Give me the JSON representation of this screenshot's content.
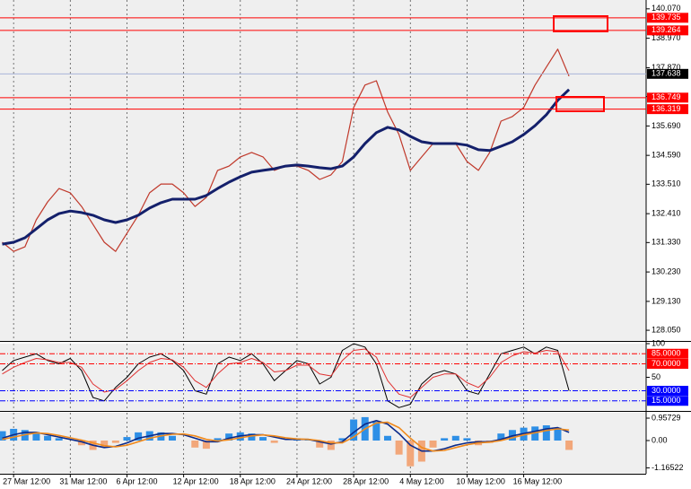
{
  "chart_data": [
    {
      "type": "line",
      "x": [
        -2,
        0,
        2,
        4,
        6,
        8,
        10,
        12,
        14,
        16,
        18,
        20,
        22,
        24,
        26,
        28,
        30,
        32,
        34,
        36,
        38,
        40,
        42,
        44,
        46,
        48,
        50,
        52,
        54,
        56,
        58,
        60,
        62,
        64,
        66,
        68,
        70,
        72,
        74,
        76,
        78,
        80,
        82,
        84,
        86,
        88,
        90,
        92,
        94,
        96,
        98
      ],
      "xlim": [
        -2.4,
        111.6
      ],
      "xticks": [
        {
          "value": 0,
          "label": "27 Mar 12:00"
        },
        {
          "value": 10,
          "label": "31 Mar 12:00"
        },
        {
          "value": 20,
          "label": "6 Apr 12:00"
        },
        {
          "value": 30,
          "label": "12 Apr 12:00"
        },
        {
          "value": 40,
          "label": "18 Apr 12:00"
        },
        {
          "value": 50,
          "label": "24 Apr 12:00"
        },
        {
          "value": 60,
          "label": "28 Apr 12:00"
        },
        {
          "value": 70,
          "label": "4 May 12:00"
        },
        {
          "value": 80,
          "label": "10 May 12:00"
        },
        {
          "value": 90,
          "label": "16 May 12:00"
        }
      ],
      "xgrid": true,
      "ylim": [
        127.65,
        140.4
      ],
      "yticks": [
        {
          "value": 140.07,
          "label": "140.070"
        },
        {
          "value": 138.97,
          "label": "138.970"
        },
        {
          "value": 137.87,
          "label": "137.870"
        },
        {
          "value": 136.79,
          "label": "136.790"
        },
        {
          "value": 135.69,
          "label": "135.690"
        },
        {
          "value": 134.59,
          "label": "134.590"
        },
        {
          "value": 133.51,
          "label": "133.510"
        },
        {
          "value": 132.41,
          "label": "132.410"
        },
        {
          "value": 131.33,
          "label": "131.330"
        },
        {
          "value": 130.23,
          "label": "130.230"
        },
        {
          "value": 129.13,
          "label": "129.130"
        },
        {
          "value": 128.05,
          "label": "128.050"
        }
      ],
      "series": [
        {
          "color": "#c0392b",
          "width": 1.2,
          "values": [
            131.34,
            131.0,
            131.17,
            132.18,
            132.85,
            133.35,
            133.19,
            132.68,
            132.01,
            131.34,
            131.0,
            131.68,
            132.35,
            133.19,
            133.52,
            133.52,
            133.19,
            132.68,
            133.02,
            134.03,
            134.19,
            134.53,
            134.7,
            134.53,
            134.03,
            134.19,
            134.19,
            134.03,
            133.69,
            133.86,
            134.36,
            136.38,
            137.22,
            137.38,
            136.21,
            135.37,
            134.03,
            134.53,
            135.03,
            135.03,
            135.03,
            134.36,
            134.03,
            134.7,
            135.87,
            136.04,
            136.38,
            137.22,
            137.89,
            138.56,
            137.55
          ]
        },
        {
          "color": "#14206b",
          "width": 3,
          "values": [
            131.27,
            131.34,
            131.51,
            131.84,
            132.18,
            132.41,
            132.51,
            132.45,
            132.35,
            132.18,
            132.08,
            132.18,
            132.35,
            132.62,
            132.82,
            132.95,
            132.95,
            132.95,
            133.09,
            133.35,
            133.59,
            133.79,
            133.96,
            134.03,
            134.09,
            134.19,
            134.23,
            134.19,
            134.13,
            134.09,
            134.19,
            134.53,
            135.03,
            135.44,
            135.64,
            135.54,
            135.3,
            135.1,
            135.03,
            135.03,
            135.03,
            134.97,
            134.8,
            134.77,
            134.93,
            135.1,
            135.37,
            135.7,
            136.11,
            136.65,
            137.05
          ]
        }
      ],
      "levels": [
        {
          "value": 139.735,
          "color": "#ff0000"
        },
        {
          "value": 139.264,
          "color": "#ff0000"
        },
        {
          "value": 137.638,
          "color": "#000000",
          "line": "#aab4d8"
        },
        {
          "value": 136.749,
          "color": "#ff0000"
        },
        {
          "value": 136.319,
          "color": "#ff0000"
        }
      ]
    },
    {
      "type": "line",
      "ylim": [
        0,
        100
      ],
      "yticks": [
        100,
        50
      ],
      "series": [
        {
          "color": "#000000",
          "width": 1,
          "values": [
            60,
            75,
            80,
            85,
            75,
            70,
            78,
            60,
            20,
            15,
            35,
            50,
            70,
            80,
            85,
            75,
            60,
            30,
            25,
            70,
            80,
            75,
            85,
            70,
            45,
            60,
            75,
            70,
            40,
            50,
            90,
            100,
            95,
            70,
            15,
            5,
            10,
            40,
            55,
            60,
            55,
            30,
            25,
            55,
            85,
            90,
            95,
            85,
            95,
            90,
            30
          ]
        },
        {
          "color": "#e03030",
          "width": 1,
          "values": [
            55,
            65,
            72,
            78,
            76,
            72,
            72,
            65,
            40,
            28,
            32,
            45,
            60,
            72,
            78,
            76,
            65,
            45,
            35,
            55,
            70,
            72,
            78,
            72,
            58,
            60,
            68,
            68,
            55,
            52,
            75,
            90,
            92,
            80,
            45,
            25,
            20,
            35,
            50,
            55,
            55,
            42,
            35,
            50,
            72,
            82,
            88,
            86,
            90,
            88,
            60
          ]
        }
      ],
      "levels": [
        {
          "value": 85,
          "label": "85.0000",
          "color": "#ff0000"
        },
        {
          "value": 70,
          "label": "70.0000",
          "color": "#ff0000"
        },
        {
          "value": 30,
          "label": "30.0000",
          "color": "#0000ff"
        },
        {
          "value": 15,
          "label": "15.0000",
          "color": "#0000ff"
        }
      ],
      "level_style": "dashdot"
    },
    {
      "type": "bar",
      "ylim": [
        -1.418,
        1.188
      ],
      "yticks": [
        0.95729,
        {
          "value": 0,
          "label": "0.00"
        },
        -1.16522
      ],
      "color_up": "#2e8fe6",
      "color_down": "#f2a77a",
      "values": [
        0.4,
        0.5,
        0.45,
        0.35,
        0.2,
        0.1,
        0.0,
        -0.2,
        -0.4,
        -0.3,
        -0.1,
        0.15,
        0.35,
        0.4,
        0.35,
        0.2,
        0.0,
        -0.3,
        -0.35,
        0.1,
        0.3,
        0.35,
        0.3,
        0.15,
        -0.1,
        0.0,
        0.1,
        0.05,
        -0.3,
        -0.4,
        0.1,
        0.9,
        1.0,
        0.8,
        0.2,
        -0.6,
        -1.1,
        -0.9,
        -0.3,
        0.1,
        0.2,
        0.1,
        -0.2,
        -0.1,
        0.3,
        0.45,
        0.55,
        0.6,
        0.65,
        0.55,
        -0.4
      ],
      "series": [
        {
          "color": "#0b2a8a",
          "width": 1.6,
          "values": [
            0.1,
            0.25,
            0.35,
            0.35,
            0.25,
            0.15,
            0.05,
            -0.05,
            -0.2,
            -0.3,
            -0.25,
            -0.1,
            0.1,
            0.2,
            0.3,
            0.3,
            0.25,
            0.1,
            -0.05,
            -0.05,
            0.1,
            0.2,
            0.25,
            0.25,
            0.15,
            0.05,
            0.05,
            0.05,
            -0.05,
            -0.15,
            -0.05,
            0.35,
            0.7,
            0.85,
            0.7,
            0.3,
            -0.2,
            -0.45,
            -0.45,
            -0.35,
            -0.2,
            -0.1,
            -0.05,
            -0.05,
            0.05,
            0.2,
            0.3,
            0.4,
            0.5,
            0.55,
            0.35
          ]
        },
        {
          "color": "#f08a1c",
          "width": 1.6,
          "values": [
            0.05,
            0.15,
            0.25,
            0.32,
            0.3,
            0.22,
            0.12,
            0.02,
            -0.1,
            -0.22,
            -0.27,
            -0.2,
            -0.05,
            0.1,
            0.2,
            0.27,
            0.28,
            0.2,
            0.05,
            -0.02,
            0.03,
            0.12,
            0.2,
            0.24,
            0.2,
            0.12,
            0.07,
            0.05,
            0.0,
            -0.1,
            -0.1,
            0.15,
            0.5,
            0.75,
            0.78,
            0.55,
            0.1,
            -0.3,
            -0.45,
            -0.42,
            -0.3,
            -0.18,
            -0.1,
            -0.07,
            0.0,
            0.12,
            0.24,
            0.33,
            0.43,
            0.5,
            0.45
          ]
        }
      ]
    }
  ]
}
